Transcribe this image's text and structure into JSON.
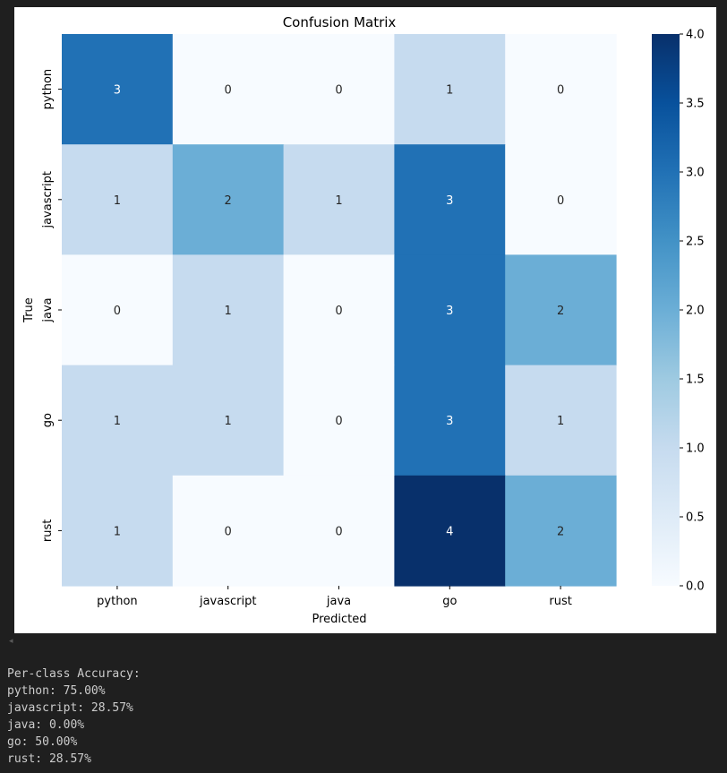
{
  "chart_data": {
    "type": "heatmap",
    "title": "Confusion Matrix",
    "xlabel": "Predicted",
    "ylabel": "True",
    "x_categories": [
      "python",
      "javascript",
      "java",
      "go",
      "rust"
    ],
    "y_categories": [
      "python",
      "javascript",
      "java",
      "go",
      "rust"
    ],
    "matrix": [
      [
        3,
        0,
        0,
        1,
        0
      ],
      [
        1,
        2,
        1,
        3,
        0
      ],
      [
        0,
        1,
        0,
        3,
        2
      ],
      [
        1,
        1,
        0,
        3,
        1
      ],
      [
        1,
        0,
        0,
        4,
        2
      ]
    ],
    "vmin": 0,
    "vmax": 4,
    "colormap": "Blues",
    "colorbar_ticks": [
      "0.0",
      "0.5",
      "1.0",
      "1.5",
      "2.0",
      "2.5",
      "3.0",
      "3.5",
      "4.0"
    ]
  },
  "colors": {
    "cmap_stops": [
      "#f7fbff",
      "#deebf7",
      "#c6dbef",
      "#9ecae1",
      "#6baed6",
      "#4292c6",
      "#2171b5",
      "#08519c",
      "#08306b"
    ],
    "light_text": "#ffffff",
    "dark_text": "#262626"
  },
  "output": {
    "scroll_arrow_icon": "◂",
    "lines": [
      "Per-class Accuracy:",
      "python: 75.00%",
      "javascript: 28.57%",
      "java: 0.00%",
      "go: 50.00%",
      "rust: 28.57%"
    ]
  }
}
